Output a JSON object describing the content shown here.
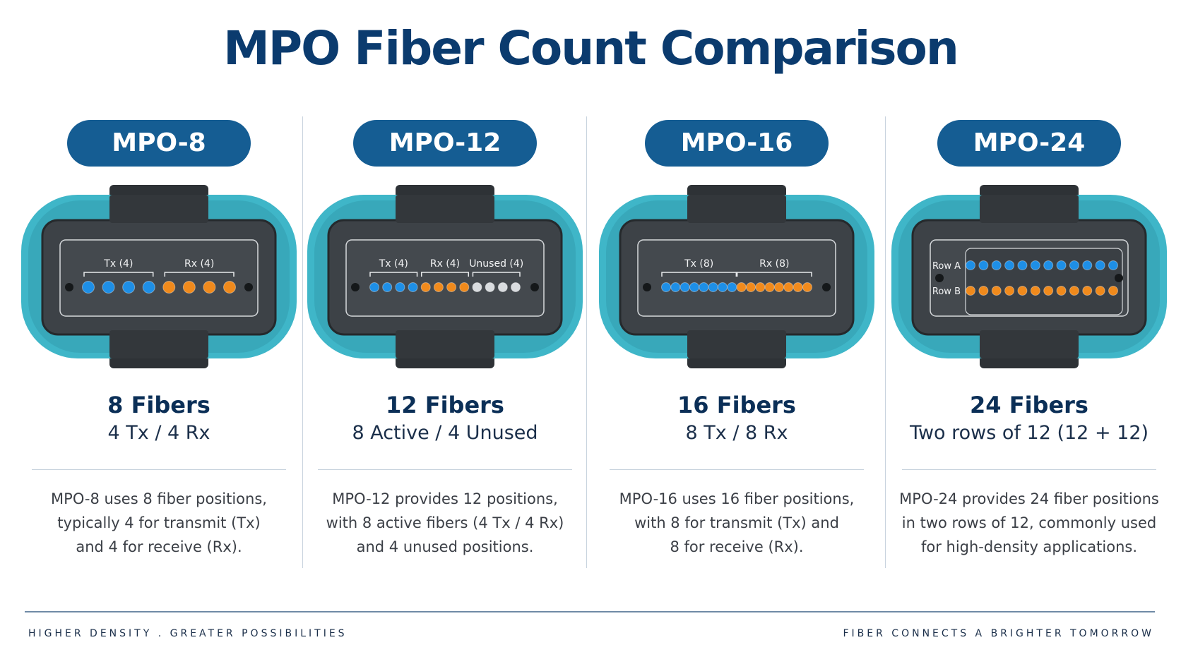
{
  "title": "MPO Fiber Count Comparison",
  "colors": {
    "title": "#0b3b6e",
    "pill": "#155d93",
    "shell": "#3fb6c8",
    "housing": "#3d4247",
    "tx": "#1e8fe6",
    "rx": "#f08a1c",
    "unused": "#d9dcdf"
  },
  "columns": [
    {
      "name": "MPO-8",
      "fibers": "8 Fibers",
      "sub": "4 Tx / 4 Rx",
      "desc": [
        "MPO-8 uses 8 fiber positions,",
        "typically 4 for transmit (Tx)",
        "and 4 for receive (Rx)."
      ],
      "groups": [
        {
          "label": "Tx (4)",
          "count": 4,
          "kind": "tx"
        },
        {
          "label": "Rx (4)",
          "count": 4,
          "kind": "rx"
        }
      ]
    },
    {
      "name": "MPO-12",
      "fibers": "12 Fibers",
      "sub": "8 Active / 4 Unused",
      "desc": [
        "MPO-12 provides 12 positions,",
        "with 8 active fibers (4 Tx / 4 Rx)",
        "and 4 unused positions."
      ],
      "groups": [
        {
          "label": "Tx (4)",
          "count": 4,
          "kind": "tx"
        },
        {
          "label": "Rx (4)",
          "count": 4,
          "kind": "rx"
        },
        {
          "label": "Unused (4)",
          "count": 4,
          "kind": "unused"
        }
      ]
    },
    {
      "name": "MPO-16",
      "fibers": "16 Fibers",
      "sub": "8 Tx / 8 Rx",
      "desc": [
        "MPO-16 uses 16 fiber positions,",
        "with 8 for transmit (Tx) and",
        "8 for receive (Rx)."
      ],
      "groups": [
        {
          "label": "Tx (8)",
          "count": 8,
          "kind": "tx"
        },
        {
          "label": "Rx (8)",
          "count": 8,
          "kind": "rx"
        }
      ]
    },
    {
      "name": "MPO-24",
      "fibers": "24 Fibers",
      "sub": "Two rows of 12 (12 + 12)",
      "desc": [
        "MPO-24 provides 24 fiber positions",
        "in two rows of 12, commonly used",
        "for high-density applications."
      ],
      "rows": [
        {
          "label": "Row A",
          "count": 12,
          "kind": "tx"
        },
        {
          "label": "Row B",
          "count": 12,
          "kind": "rx"
        }
      ]
    }
  ],
  "footer": {
    "left": "HIGHER DENSITY  .  GREATER POSSIBILITIES",
    "right": "FIBER CONNECTS A BRIGHTER TOMORROW"
  }
}
